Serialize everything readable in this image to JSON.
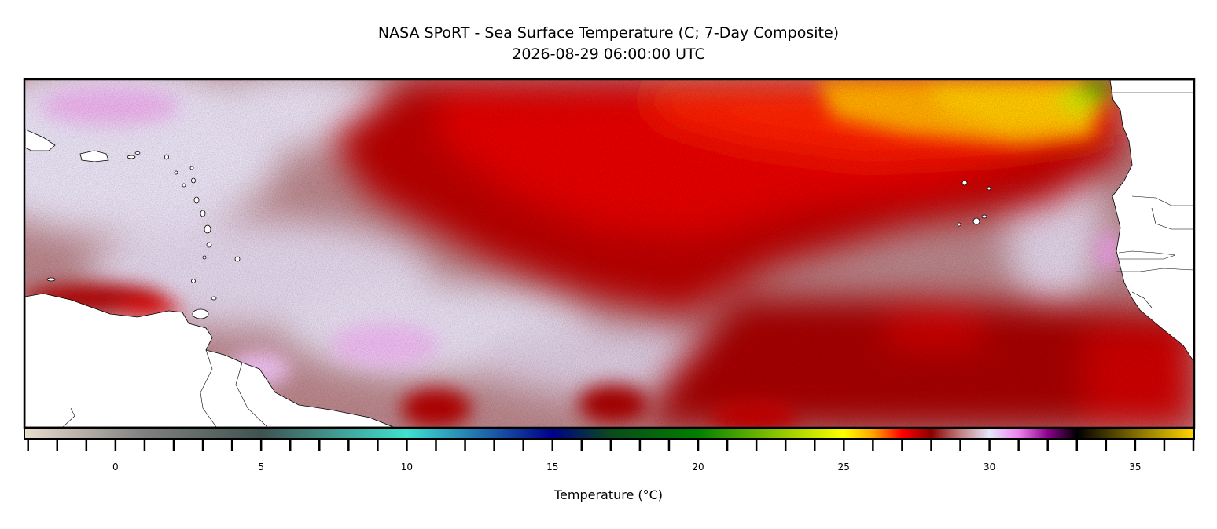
{
  "title": {
    "line1": "NASA SPoRT - Sea Surface Temperature (C; 7-Day Composite)",
    "line2": "2026-08-29 06:00:00 UTC"
  },
  "colorbar": {
    "label": "Temperature (°C)",
    "min": -3.1,
    "max": 37,
    "tick_labels": [
      "0",
      "5",
      "10",
      "15",
      "20",
      "25",
      "30",
      "35"
    ],
    "tick_values": [
      0,
      5,
      10,
      15,
      20,
      25,
      30,
      35
    ],
    "colors": [
      "#e8dccc",
      "#808080",
      "#3f5350",
      "#40e0d0",
      "#00008b",
      "#0b4a1a",
      "#008000",
      "#ffff00",
      "#ffa500",
      "#ff0000",
      "#8b0000",
      "#c08080",
      "#e6e6fa",
      "#ee82ee",
      "#8b008b",
      "#000000",
      "#ffd700"
    ],
    "color_stops": [
      -3.1,
      1,
      5,
      10,
      15,
      17,
      20,
      25,
      26,
      27,
      28,
      29,
      30,
      31,
      32,
      33,
      37
    ]
  },
  "map": {
    "region": "Tropical North Atlantic",
    "land_color": "#ffffff",
    "coastline_color": "#000000"
  }
}
